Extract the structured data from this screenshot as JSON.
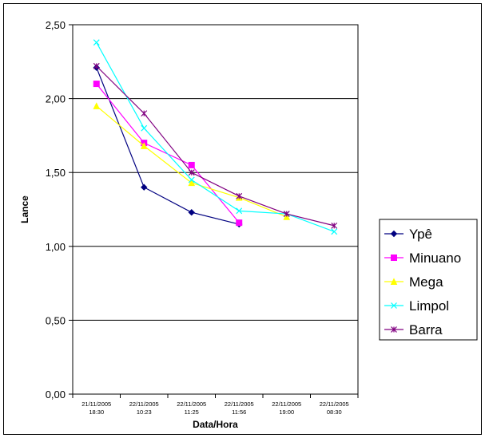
{
  "chart_data": {
    "type": "line",
    "xlabel": "Data/Hora",
    "ylabel": "Lance",
    "ylim": [
      0,
      2.5
    ],
    "yticks": [
      "0,00",
      "0,50",
      "1,00",
      "1,50",
      "2,00",
      "2,50"
    ],
    "grid": true,
    "legend_position": "right",
    "categories": [
      [
        "21/11/2005",
        "18:30"
      ],
      [
        "22/11/2005",
        "10:23"
      ],
      [
        "22/11/2005",
        "11:25"
      ],
      [
        "22/11/2005",
        "11:56"
      ],
      [
        "22/11/2005",
        "19:00"
      ],
      [
        "22/11/2005",
        "08:30"
      ]
    ],
    "series": [
      {
        "name": "Ypê",
        "color": "#000080",
        "marker": "diamond",
        "values": [
          2.21,
          1.4,
          1.23,
          1.15,
          null,
          null
        ]
      },
      {
        "name": "Minuano",
        "color": "#FF00FF",
        "marker": "square",
        "values": [
          2.1,
          1.7,
          1.55,
          1.16,
          null,
          null
        ]
      },
      {
        "name": "Mega",
        "color": "#FFFF00",
        "marker": "triangle",
        "values": [
          1.95,
          1.68,
          1.43,
          1.33,
          1.2,
          null
        ]
      },
      {
        "name": "Limpol",
        "color": "#00FFFF",
        "marker": "x",
        "values": [
          2.38,
          1.8,
          1.45,
          1.24,
          1.22,
          1.1
        ]
      },
      {
        "name": "Barra",
        "color": "#800080",
        "marker": "star",
        "values": [
          2.22,
          1.9,
          1.5,
          1.34,
          1.22,
          1.14
        ]
      }
    ]
  }
}
